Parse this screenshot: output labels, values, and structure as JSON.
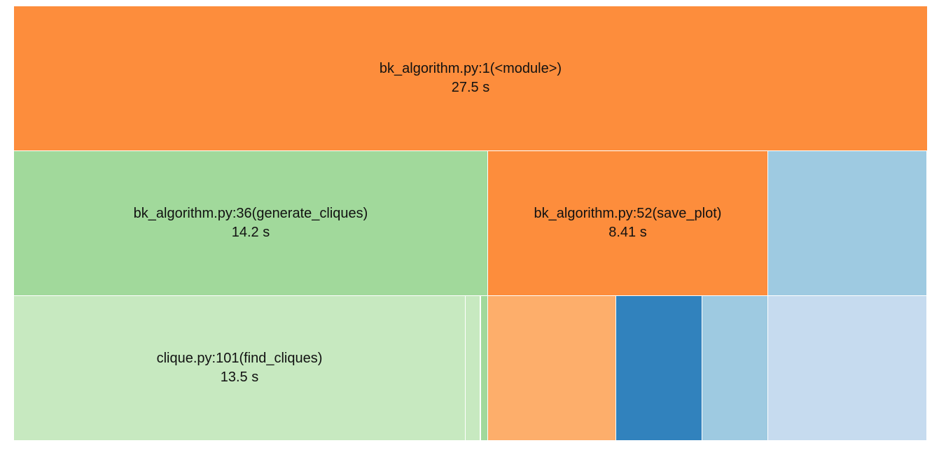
{
  "icicle": {
    "nodes": [
      {
        "id": "module",
        "name": "bk_algorithm.py:1(<module>)",
        "time": "27.5 s",
        "color": "#fd8d3c"
      },
      {
        "id": "generate_cliques",
        "name": "bk_algorithm.py:36(generate_cliques)",
        "time": "14.2 s",
        "color": "#a1d99b"
      },
      {
        "id": "save_plot",
        "name": "bk_algorithm.py:52(save_plot)",
        "time": "8.41 s",
        "color": "#fd8d3c"
      },
      {
        "id": "unlabeled-level1-blue",
        "name": "",
        "time": "",
        "color": "#9ecae1"
      },
      {
        "id": "find_cliques",
        "name": "clique.py:101(find_cliques)",
        "time": "13.5 s",
        "color": "#c7e9c0"
      },
      {
        "id": "unlabeled-small-1",
        "name": "",
        "time": "",
        "color": "#c7e9c0"
      },
      {
        "id": "unlabeled-small-2",
        "name": "",
        "time": "",
        "color": "#c7e9c0"
      },
      {
        "id": "unlabeled-small-3",
        "name": "",
        "time": "",
        "color": "#a1d99b"
      },
      {
        "id": "unlabeled-orange-child",
        "name": "",
        "time": "",
        "color": "#fdae6b"
      },
      {
        "id": "unlabeled-darkblue-child",
        "name": "",
        "time": "",
        "color": "#3182bd"
      },
      {
        "id": "unlabeled-lightblue-child",
        "name": "",
        "time": "",
        "color": "#9ecae1"
      },
      {
        "id": "unlabeled-paleblue-child",
        "name": "",
        "time": "",
        "color": "#c6dbef"
      }
    ]
  }
}
